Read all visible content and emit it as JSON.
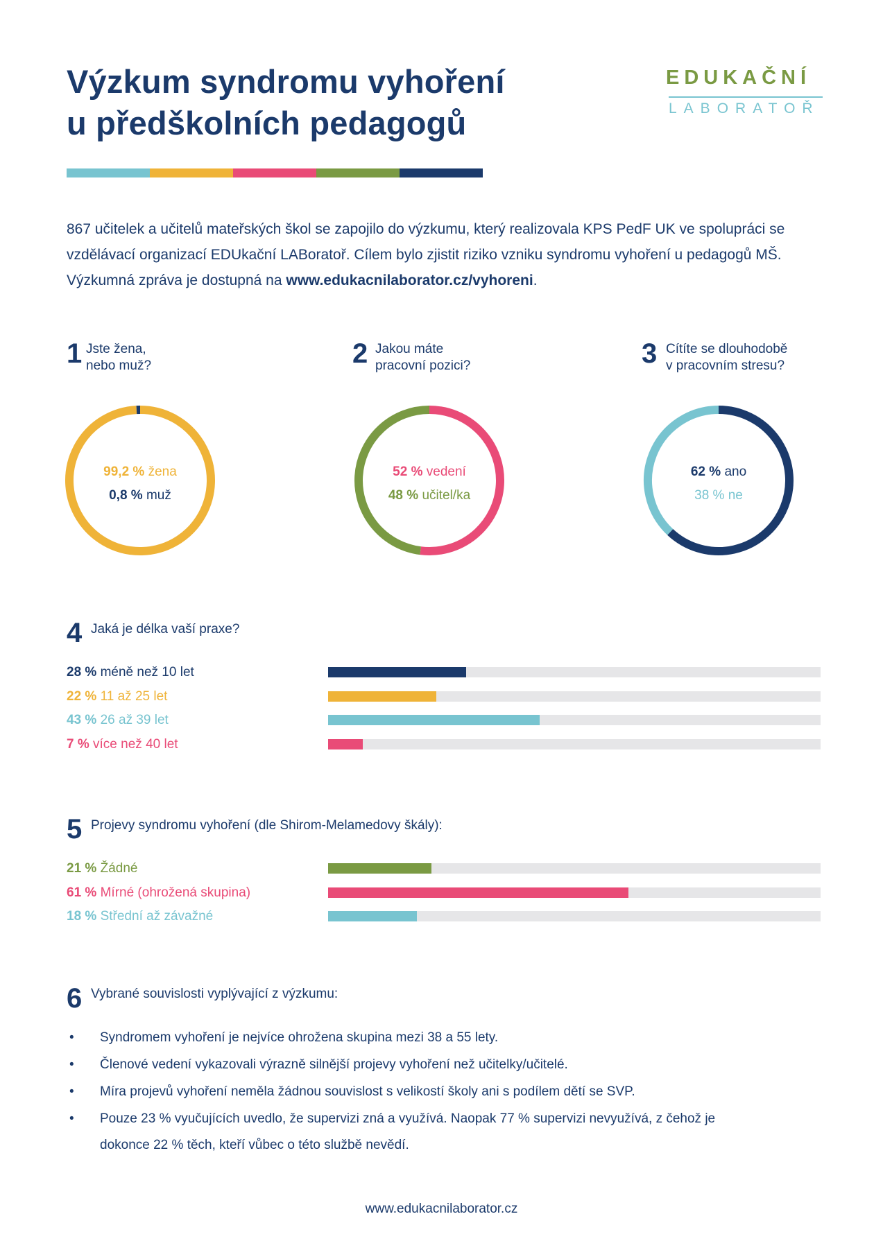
{
  "title_line1": "Výzkum syndromu vyhoření",
  "title_line2": "u předškolních pedagogů",
  "logo": {
    "top": "EDUKAČNÍ",
    "bottom": "LABORATOŘ"
  },
  "colors": {
    "navy": "#1b3a6b",
    "teal": "#78c4d0",
    "yellow": "#efb338",
    "pink": "#e94b77",
    "green": "#7a9a43",
    "track": "#e6e6e8"
  },
  "stripe_colors": [
    "#78c4d0",
    "#efb338",
    "#e94b77",
    "#7a9a43",
    "#1b3a6b"
  ],
  "intro": {
    "text1": "867 učitelek a učitelů mateřských škol se zapojilo do výzkumu, který realizovala KPS PedF UK ve spolupráci se vzdělávací organizací EDUkační LABoratoř. Cílem bylo zjistit riziko vzniku syndromu vyhoření u pedagogů MŠ. Výzkumná zpráva je dostupná na ",
    "link": "www.edukacnilaborator.cz/vyhoreni",
    "end": "."
  },
  "questions": {
    "q1": {
      "num": "1",
      "line1": "Jste žena,",
      "line2": "nebo muž?"
    },
    "q2": {
      "num": "2",
      "line1": "Jakou máte",
      "line2": "pracovní pozici?"
    },
    "q3": {
      "num": "3",
      "line1": "Cítíte se dlouhodobě",
      "line2": "v pracovním stresu?"
    },
    "q4": {
      "num": "4",
      "text": "Jaká je délka vaší praxe?"
    },
    "q5": {
      "num": "5",
      "text": "Projevy syndromu vyhoření (dle Shirom-Melamedovy škály):"
    },
    "q6": {
      "num": "6",
      "text": "Vybrané souvislosti vyplývající z výzkumu:"
    }
  },
  "chart_data": [
    {
      "type": "pie",
      "categories": [
        "žena",
        "muž"
      ],
      "values": [
        99.2,
        0.8
      ],
      "value_labels": [
        "99,2 %",
        "0,8 %"
      ],
      "colors": [
        "#efb338",
        "#1b3a6b"
      ],
      "label_colors": [
        "#efb338",
        "#1b3a6b"
      ]
    },
    {
      "type": "pie",
      "categories": [
        "vedení",
        "učitel/ka"
      ],
      "values": [
        52,
        48
      ],
      "value_labels": [
        "52 %",
        "48 %"
      ],
      "colors": [
        "#e94b77",
        "#7a9a43"
      ],
      "label_colors": [
        "#e94b77",
        "#7a9a43"
      ]
    },
    {
      "type": "pie",
      "categories": [
        "ano",
        "ne"
      ],
      "values": [
        62,
        38
      ],
      "value_labels": [
        "62 %",
        "38 %"
      ],
      "colors": [
        "#1b3a6b",
        "#78c4d0"
      ],
      "label_colors": [
        "#1b3a6b",
        "#78c4d0"
      ]
    },
    {
      "type": "bar",
      "categories": [
        "méně než 10 let",
        "11 až 25 let",
        "26 až 39 let",
        "více než 40 let"
      ],
      "values": [
        28,
        22,
        43,
        7
      ],
      "value_labels": [
        "28 %",
        "22 %",
        "43 %",
        "7 %"
      ],
      "colors": [
        "#1b3a6b",
        "#efb338",
        "#78c4d0",
        "#e94b77"
      ],
      "label_colors": [
        "#1b3a6b",
        "#efb338",
        "#78c4d0",
        "#e94b77"
      ],
      "text_colors": [
        "#1b3a6b",
        "#efb338",
        "#78c4d0",
        "#e94b77"
      ],
      "ylim": [
        0,
        100
      ]
    },
    {
      "type": "bar",
      "categories": [
        "Žádné",
        "Mírné (ohrožená skupina)",
        "Střední až závažné"
      ],
      "values": [
        21,
        61,
        18
      ],
      "value_labels": [
        "21 %",
        "61 %",
        "18 %"
      ],
      "colors": [
        "#7a9a43",
        "#e94b77",
        "#78c4d0"
      ],
      "label_colors": [
        "#7a9a43",
        "#e94b77",
        "#78c4d0"
      ],
      "text_colors": [
        "#7a9a43",
        "#e94b77",
        "#78c4d0"
      ],
      "ylim": [
        0,
        100
      ]
    }
  ],
  "bullets": [
    {
      "lines": [
        "Syndromem vyhoření je nejvíce ohrožena skupina mezi 38 a 55 lety."
      ]
    },
    {
      "lines": [
        "Členové vedení vykazovali výrazně silnější projevy vyhoření než učitelky/učitelé."
      ]
    },
    {
      "lines": [
        "Míra projevů vyhoření neměla žádnou souvislost s velikostí školy ani s podílem dětí se SVP."
      ]
    },
    {
      "lines": [
        "Pouze 23 % vyučujících uvedlo, že supervizi zná a využívá. Naopak 77 % supervizi nevyužívá, z čehož je",
        "dokonce 22 % těch, kteří vůbec o této službě nevědí."
      ]
    }
  ],
  "footer": "www.edukacnilaborator.cz"
}
